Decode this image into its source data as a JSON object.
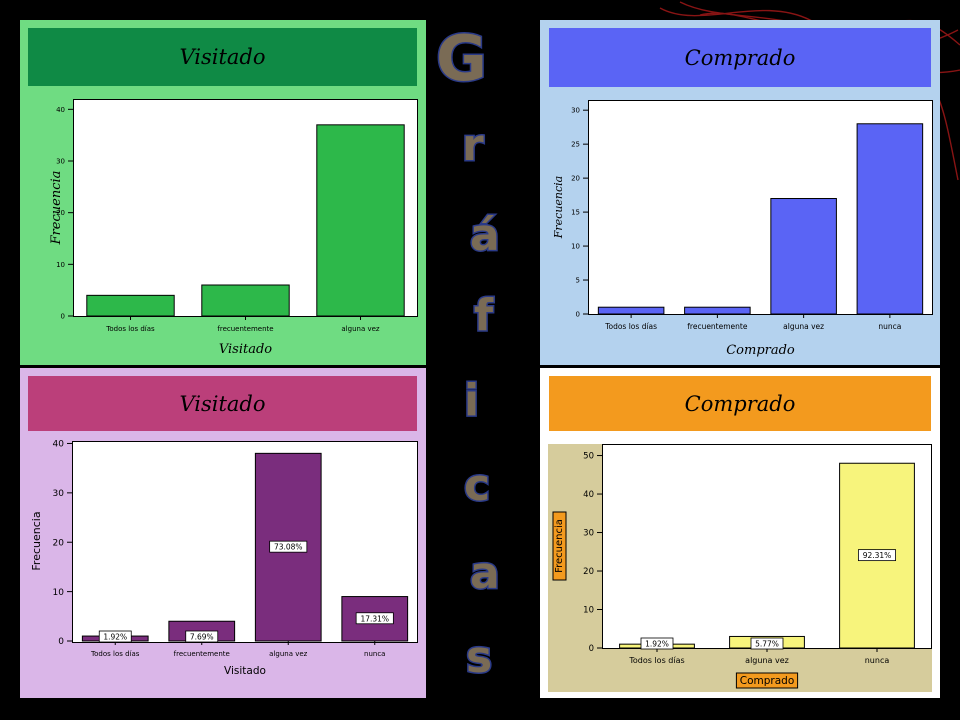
{
  "side_title_letters": [
    "G",
    "r",
    "á",
    "f",
    "i",
    "c",
    "a",
    "s"
  ],
  "colors": {
    "panel1_bg": "#6fdc82",
    "panel1_header": "#0f8a45",
    "panel1_bar": "#2db84a",
    "panel2_bg": "#b4d2ee",
    "panel2_header": "#5a64f5",
    "panel2_bar": "#5a64f5",
    "panel3_bg": "#dab6e8",
    "panel3_header": "#bb3f7a",
    "panel3_bar": "#7a2d7d",
    "panel4_bg": "#ffffff",
    "panel4_header": "#f39a1e",
    "panel4_area": "#d6cc9c",
    "panel4_bar": "#f7f47c",
    "deco_red": "#a01818"
  },
  "charts": [
    {
      "header": "Visitado",
      "chart_data": {
        "type": "bar",
        "categories": [
          "Todos los días",
          "frecuentemente",
          "alguna vez"
        ],
        "values": [
          4,
          6,
          37
        ],
        "xlabel": "Visitado",
        "ylabel": "Frecuencia",
        "ylim": [
          0,
          42
        ],
        "yticks": [
          0,
          10,
          20,
          30,
          40
        ],
        "data_labels": [],
        "grid": false
      }
    },
    {
      "header": "Comprado",
      "chart_data": {
        "type": "bar",
        "categories": [
          "Todos los días",
          "frecuentemente",
          "alguna vez",
          "nunca"
        ],
        "values": [
          1,
          1,
          17,
          28
        ],
        "xlabel": "Comprado",
        "ylabel": "Frecuencia",
        "ylim": [
          0,
          31.5
        ],
        "yticks": [
          0,
          5,
          10,
          15,
          20,
          25,
          30
        ],
        "data_labels": [],
        "grid": false
      }
    },
    {
      "header": "Visitado",
      "chart_data": {
        "type": "bar",
        "categories": [
          "Todos los días",
          "frecuentemente",
          "alguna vez",
          "nunca"
        ],
        "values": [
          1,
          4,
          38,
          9
        ],
        "xlabel": "Visitado",
        "ylabel": "Frecuencia",
        "ylim": [
          0,
          40.5
        ],
        "yticks": [
          0,
          10,
          20,
          30,
          40
        ],
        "data_labels": [
          "1.92%",
          "7.69%",
          "73.08%",
          "17.31%"
        ],
        "grid": false
      }
    },
    {
      "header": "Comprado",
      "chart_data": {
        "type": "bar",
        "categories": [
          "Todos los días",
          "alguna vez",
          "nunca"
        ],
        "values": [
          1,
          3,
          48
        ],
        "xlabel": "Comprado",
        "ylabel": "Frecuencia",
        "ylim": [
          0,
          53
        ],
        "yticks": [
          0,
          10,
          20,
          30,
          40,
          50
        ],
        "data_labels": [
          "1.92%",
          "5.77%",
          "92.31%"
        ],
        "grid": false
      }
    }
  ]
}
